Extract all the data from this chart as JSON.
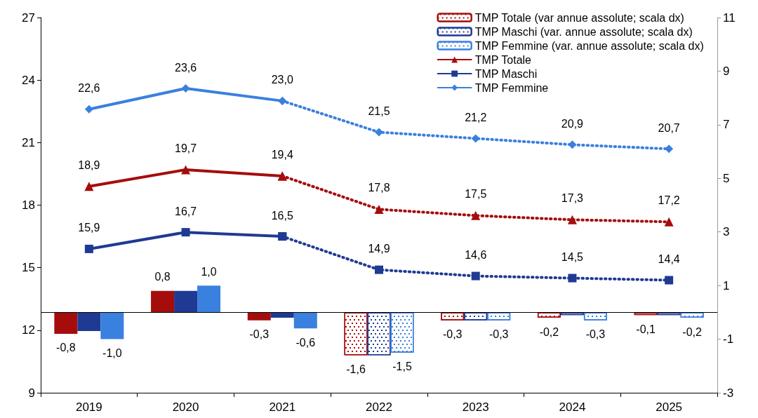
{
  "chart_data": {
    "type": "line",
    "categories": [
      "2019",
      "2020",
      "2021",
      "2022",
      "2023",
      "2024",
      "2025"
    ],
    "ylim": [
      9,
      27
    ],
    "yticks": [
      9,
      12,
      15,
      18,
      21,
      24,
      27
    ],
    "y2lim": [
      -3,
      11
    ],
    "y2ticks": [
      -3,
      -1,
      1,
      3,
      5,
      7,
      9,
      11
    ],
    "grid": false,
    "legend": "top right",
    "series": [
      {
        "name": "TMP Totale (var annue assolute; scala dx)",
        "type": "bar",
        "axis": "y2",
        "color": "#a50d0d",
        "line_style": "dotted",
        "values": [
          null,
          null,
          null,
          -1.6,
          -0.3,
          -0.2,
          -0.1
        ],
        "value_labels": [
          null,
          null,
          null,
          "-1,6",
          "-0,3",
          "-0,2",
          "-0,1"
        ]
      },
      {
        "name": "TMP Maschi (var. annue assolute; scala dx)",
        "type": "bar",
        "axis": "y2",
        "color": "#1f3a93",
        "line_style": "dotted",
        "values": [
          null,
          null,
          null,
          -1.6,
          -0.3,
          -0.1,
          -0.1
        ],
        "value_labels": [
          null,
          null,
          null,
          null,
          null,
          null,
          null
        ]
      },
      {
        "name": "TMP Femmine (var. annue assolute; scala dx)",
        "type": "bar",
        "axis": "y2",
        "color": "#3a80de",
        "line_style": "dotted",
        "values": [
          null,
          null,
          null,
          -1.5,
          -0.3,
          -0.3,
          -0.2
        ],
        "value_labels": [
          null,
          null,
          null,
          "-1,5",
          "-0,3",
          "-0,3",
          "-0,2"
        ]
      },
      {
        "type": "bar",
        "axis": "y2",
        "color": "#a50d0d",
        "line_style": "solid",
        "values": [
          -0.8,
          0.8,
          -0.3,
          null,
          null,
          null,
          null
        ],
        "value_labels": [
          "-0,8",
          "0,8",
          "-0,3",
          null,
          null,
          null,
          null
        ]
      },
      {
        "type": "bar",
        "axis": "y2",
        "color": "#1f3a93",
        "line_style": "solid",
        "values": [
          -0.7,
          0.8,
          -0.2,
          null,
          null,
          null,
          null
        ],
        "value_labels": [
          null,
          null,
          null,
          null,
          null,
          null,
          null
        ]
      },
      {
        "type": "bar",
        "axis": "y2",
        "color": "#3a80de",
        "line_style": "solid",
        "values": [
          -1.0,
          1.0,
          -0.6,
          null,
          null,
          null,
          null
        ],
        "value_labels": [
          "-1,0",
          "1,0",
          "-0,6",
          null,
          null,
          null,
          null
        ]
      },
      {
        "name": "TMP Totale",
        "color": "#a50d0d",
        "marker": "triangle",
        "line_style": "solid",
        "values": [
          18.9,
          19.7,
          19.4,
          null,
          null,
          null,
          null
        ],
        "value_labels": [
          "18,9",
          "19,7",
          "19,4",
          null,
          null,
          null,
          null
        ]
      },
      {
        "name": "TMP Maschi",
        "color": "#1f3a93",
        "marker": "square",
        "line_style": "solid",
        "values": [
          15.9,
          16.7,
          16.5,
          null,
          null,
          null,
          null
        ],
        "value_labels": [
          "15,9",
          "16,7",
          "16,5",
          null,
          null,
          null,
          null
        ]
      },
      {
        "name": "TMP Femmine",
        "color": "#3a80de",
        "marker": "diamond",
        "line_style": "solid",
        "values": [
          22.6,
          23.6,
          23.0,
          null,
          null,
          null,
          null
        ],
        "value_labels": [
          "22,6",
          "23,6",
          "23,0",
          null,
          null,
          null,
          null
        ]
      },
      {
        "color": "#a50d0d",
        "marker": "triangle",
        "line_style": "dotted",
        "values": [
          null,
          null,
          19.4,
          17.8,
          17.5,
          17.3,
          17.2
        ],
        "value_labels": [
          null,
          null,
          null,
          "17,8",
          "17,5",
          "17,3",
          "17,2"
        ]
      },
      {
        "color": "#1f3a93",
        "marker": "square",
        "line_style": "dotted",
        "values": [
          null,
          null,
          16.5,
          14.9,
          14.6,
          14.5,
          14.4
        ],
        "value_labels": [
          null,
          null,
          null,
          "14,9",
          "14,6",
          "14,5",
          "14,4"
        ]
      },
      {
        "color": "#3a80de",
        "marker": "diamond",
        "line_style": "dotted",
        "values": [
          null,
          null,
          23.0,
          21.5,
          21.2,
          20.9,
          20.7
        ],
        "value_labels": [
          null,
          null,
          null,
          "21,5",
          "21,2",
          "20,9",
          "20,7"
        ]
      }
    ]
  }
}
